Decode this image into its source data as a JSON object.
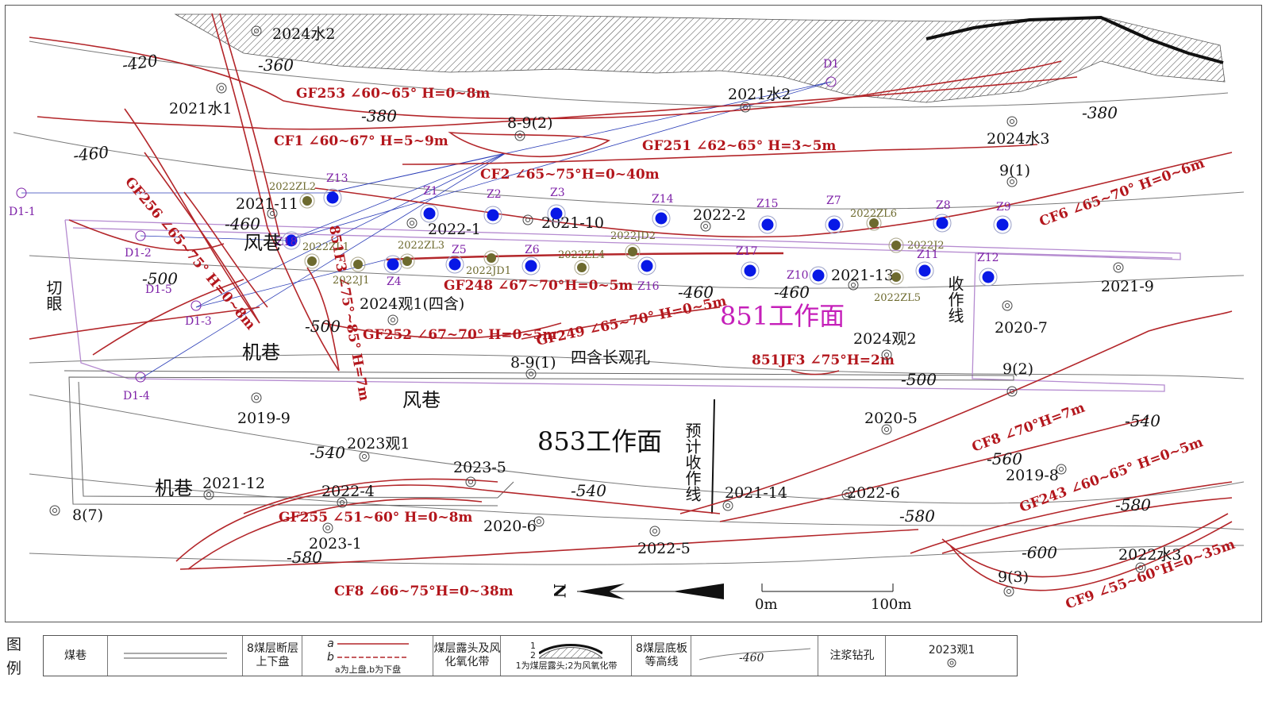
{
  "contours": [
    {
      "label": "-420"
    },
    {
      "label": "-360"
    },
    {
      "label": "-380"
    },
    {
      "label": "-380"
    },
    {
      "label": "-460"
    },
    {
      "label": "-460"
    },
    {
      "label": "-500"
    },
    {
      "label": "-500"
    },
    {
      "label": "-460"
    },
    {
      "label": "-460"
    },
    {
      "label": "-500"
    },
    {
      "label": "-540"
    },
    {
      "label": "-540"
    },
    {
      "label": "-540"
    },
    {
      "label": "-560"
    },
    {
      "label": "-580"
    },
    {
      "label": "-580"
    },
    {
      "label": "-580"
    },
    {
      "label": "-600"
    }
  ],
  "faults": [
    {
      "label": "GF253 ∠60~65° H=0~8m"
    },
    {
      "label": "CF1 ∠60~67° H=5~9m"
    },
    {
      "label": "CF2  ∠65~75°H=0~40m"
    },
    {
      "label": "GF251 ∠62~65° H=3~5m"
    },
    {
      "label": "CF6 ∠65~70° H=0~6m"
    },
    {
      "label": "GF256 ∠65~75° H=0~8m"
    },
    {
      "label": "851F3 ∠75°~85° H=7m"
    },
    {
      "label": "GF248 ∠67~70°H=0~5m"
    },
    {
      "label": "GF252 ∠67~70° H=0~5m"
    },
    {
      "label": "GF249 ∠65~70° H=0~5m"
    },
    {
      "label": "851JF3 ∠75°H=2m"
    },
    {
      "label": "CF8 ∠70°H=7m"
    },
    {
      "label": "GF243 ∠60~65° H=0~5m"
    },
    {
      "label": "GF255 ∠51~60° H=0~8m"
    },
    {
      "label": "CF8 ∠66~75°H=0~38m"
    },
    {
      "label": "CF9 ∠55~60°H=0~35m"
    }
  ],
  "boreholes": [
    {
      "label": "2024水2"
    },
    {
      "label": "2021水1"
    },
    {
      "label": "8-9(2)"
    },
    {
      "label": "2021水2"
    },
    {
      "label": "2024水3"
    },
    {
      "label": "9(1)"
    },
    {
      "label": "2021-11"
    },
    {
      "label": "2022-1"
    },
    {
      "label": "2021-10"
    },
    {
      "label": "2022-2"
    },
    {
      "label": "2021-13"
    },
    {
      "label": "2021-9"
    },
    {
      "label": "2024观1(四含)"
    },
    {
      "label": "2020-7"
    },
    {
      "label": "8-9(1)"
    },
    {
      "label": "2024观2"
    },
    {
      "label": "9(2)"
    },
    {
      "label": "2019-9"
    },
    {
      "label": "2023观1"
    },
    {
      "label": "2023-5"
    },
    {
      "label": "2020-5"
    },
    {
      "label": "2019-8"
    },
    {
      "label": "2021-12"
    },
    {
      "label": "2022-4"
    },
    {
      "label": "2021-14"
    },
    {
      "label": "2022-6"
    },
    {
      "label": "8(7)"
    },
    {
      "label": "2020-6"
    },
    {
      "label": "2023-1"
    },
    {
      "label": "2022-5"
    },
    {
      "label": "2022水3"
    },
    {
      "label": "9(3)"
    }
  ],
  "grout_holes": [
    {
      "label": "Z1"
    },
    {
      "label": "Z2"
    },
    {
      "label": "Z3"
    },
    {
      "label": "Z4"
    },
    {
      "label": "Z5"
    },
    {
      "label": "Z6"
    },
    {
      "label": "Z7"
    },
    {
      "label": "Z8"
    },
    {
      "label": "Z9"
    },
    {
      "label": "Z10"
    },
    {
      "label": "Z11"
    },
    {
      "label": "Z12"
    },
    {
      "label": "Z13"
    },
    {
      "label": "Z14"
    },
    {
      "label": "Z15"
    },
    {
      "label": "Z16"
    },
    {
      "label": "Z17"
    },
    {
      "label": "Z18"
    }
  ],
  "olive_holes": [
    {
      "label": "2022ZL2"
    },
    {
      "label": "2022ZL1"
    },
    {
      "label": "2022J1"
    },
    {
      "label": "2022ZL3"
    },
    {
      "label": "2022JD1"
    },
    {
      "label": "2022ZL4"
    },
    {
      "label": "2022JD2"
    },
    {
      "label": "2022ZL6"
    },
    {
      "label": "2022J2"
    },
    {
      "label": "2022ZL5"
    }
  ],
  "d_points": [
    {
      "label": "D1"
    },
    {
      "label": "D1-1"
    },
    {
      "label": "D1-2"
    },
    {
      "label": "D1-3"
    },
    {
      "label": "D1-4"
    },
    {
      "label": "D1-5"
    }
  ],
  "area_labels": {
    "wf_851_upper": "风巷",
    "cut_eye": "切眼",
    "jx_851": "机巷",
    "face_851": "851工作面",
    "stop_line": "收作线",
    "four_aquifer_hole": "四含长观孔",
    "wf_853": "风巷",
    "face_853": "853工作面",
    "planned_stop_line": "预计收作线",
    "jx_853": "机巷"
  },
  "north_label": "N",
  "scale": {
    "zero": "0m",
    "max": "100m"
  },
  "legend": {
    "title": "图例",
    "roadway": "煤巷",
    "fault_desc": "8煤层断层上下盘",
    "fault_a": "a",
    "fault_b": "b",
    "fault_note": "a为上盘,b为下盘",
    "outcrop_desc": "煤层露头及风化氧化带",
    "outcrop_1": "1",
    "outcrop_2": "2",
    "outcrop_note": "1为煤层露头;2为风氧化带",
    "contour_desc": "8煤层底板等高线",
    "contour_sample": "-460",
    "grout_desc": "注浆钻孔",
    "borehole_sample": "2023观1"
  },
  "colors": {
    "fault": "#b3262a",
    "fault_label": "#b3161c",
    "grout_dot": "#0818e6",
    "grout_label": "#7e22a8",
    "olive_dot": "#6d6a2e",
    "olive_label": "#6d6a2e",
    "face_label": "#c51fb9",
    "roadway_purple": "#b58bd0",
    "drill_line": "#2d3fb8"
  }
}
